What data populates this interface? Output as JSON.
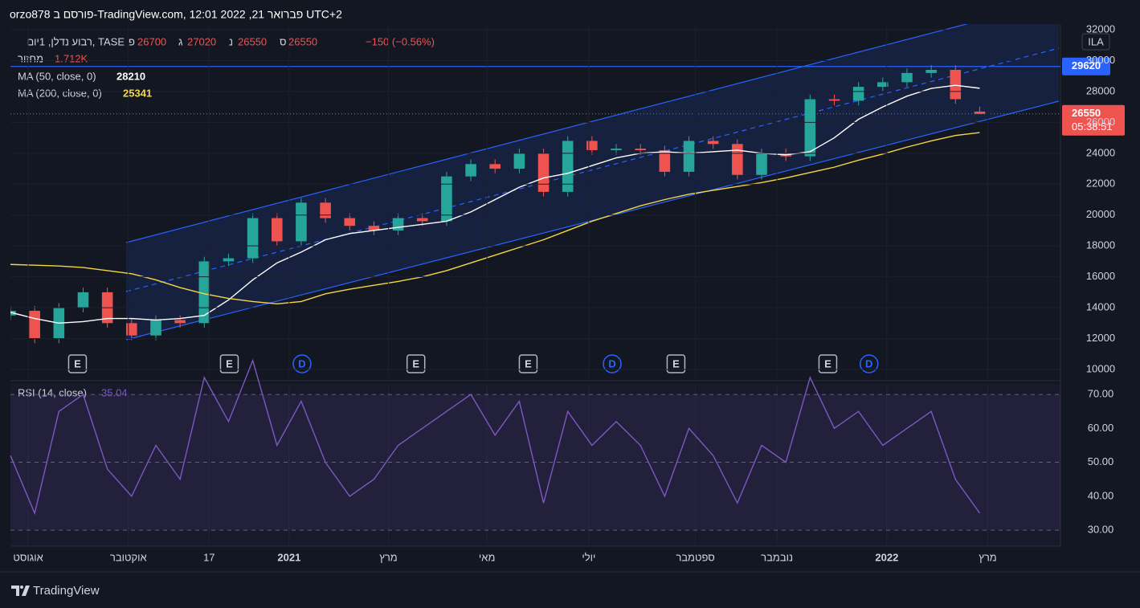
{
  "header": {
    "title": "orzo878 פורסם ב-TradingView.com, פברואר 21, 2022 12:01 UTC+2",
    "symbol": "רבוע נדלן, 1יום, TASE",
    "ohlc_labels": [
      "פ",
      "ג",
      "נ",
      "ס"
    ],
    "change": "−150 (−0.56%)",
    "volume_label": "מחזור",
    "volume": "1.712K",
    "currency": "ILA",
    "countdown": "05:38:51",
    "brand": "TradingView"
  },
  "chart_data": [
    {
      "type": "candlestick",
      "x": [
        0,
        3,
        6,
        9,
        12,
        15,
        18,
        21,
        24,
        27,
        30,
        33,
        36,
        39,
        42,
        45,
        48,
        51,
        54,
        57,
        60,
        63,
        66,
        69,
        72,
        75,
        78,
        81,
        84,
        87,
        90,
        93,
        96,
        99,
        102,
        105,
        108,
        111,
        114,
        117,
        120
      ],
      "open": [
        13500,
        13800,
        12000,
        14000,
        15000,
        13000,
        12200,
        13200,
        13000,
        17000,
        17200,
        19800,
        18300,
        20800,
        19800,
        19300,
        19000,
        19800,
        19600,
        22500,
        23300,
        23000,
        24000,
        21500,
        24800,
        24200,
        24300,
        24200,
        22800,
        24800,
        24600,
        22600,
        24000,
        23800,
        27500,
        27400,
        28300,
        28600,
        29200,
        29400,
        26700
      ],
      "high": [
        14100,
        14100,
        14300,
        15300,
        15300,
        13300,
        13500,
        13500,
        17300,
        17500,
        20100,
        20100,
        21100,
        21100,
        20100,
        19600,
        20100,
        20100,
        22800,
        23600,
        23600,
        24300,
        24300,
        25100,
        25100,
        24600,
        24600,
        24500,
        25100,
        25100,
        24900,
        24300,
        24300,
        27800,
        27800,
        28600,
        28900,
        29500,
        29700,
        29700,
        27020
      ],
      "low": [
        13200,
        11700,
        11700,
        13700,
        12700,
        11900,
        11900,
        12700,
        12700,
        16700,
        16900,
        18000,
        18000,
        19500,
        19000,
        18700,
        18700,
        19300,
        19300,
        22200,
        22700,
        22700,
        21200,
        21200,
        23900,
        23900,
        23900,
        22500,
        22500,
        24300,
        22300,
        22300,
        23500,
        23500,
        27100,
        27100,
        28000,
        28300,
        28900,
        27200,
        26550
      ],
      "close": [
        13800,
        12000,
        14000,
        15000,
        13000,
        12200,
        13200,
        13000,
        17000,
        17200,
        19800,
        18300,
        20800,
        19800,
        19300,
        19000,
        19800,
        19600,
        22500,
        23300,
        23000,
        24000,
        21500,
        24800,
        24200,
        24300,
        24200,
        22800,
        24800,
        24600,
        22600,
        24000,
        23800,
        27500,
        27400,
        28300,
        28600,
        29200,
        29400,
        27500,
        26550
      ],
      "color_up": "#26a69a",
      "color_down": "#ef5350",
      "series": [
        {
          "name": "MA (50, close, 0)",
          "color": "#ffffff",
          "values": [
            13700,
            13300,
            13000,
            13100,
            13300,
            13300,
            13200,
            13300,
            13500,
            14500,
            15800,
            16900,
            17600,
            18400,
            18800,
            19000,
            19200,
            19400,
            19600,
            20200,
            21000,
            21800,
            22400,
            22700,
            23200,
            23700,
            24000,
            24100,
            24000,
            24100,
            24200,
            24000,
            23900,
            24100,
            25000,
            26200,
            27000,
            27700,
            28200,
            28400,
            28210
          ]
        },
        {
          "name": "MA (200, close, 0)",
          "color": "#f5d742",
          "values": [
            16800,
            16750,
            16700,
            16600,
            16400,
            16200,
            15800,
            15300,
            14900,
            14600,
            14400,
            14250,
            14400,
            14900,
            15200,
            15450,
            15700,
            16000,
            16400,
            16900,
            17400,
            17900,
            18400,
            19000,
            19600,
            20100,
            20600,
            21000,
            21350,
            21600,
            21850,
            22100,
            22400,
            22750,
            23100,
            23550,
            23950,
            24400,
            24800,
            25150,
            25341
          ]
        }
      ],
      "level": 29620,
      "events": [
        {
          "x": 8.3,
          "label": "E"
        },
        {
          "x": 27.1,
          "label": "E"
        },
        {
          "x": 36.1,
          "label": "D"
        },
        {
          "x": 50.2,
          "label": "E"
        },
        {
          "x": 64.1,
          "label": "E"
        },
        {
          "x": 74.5,
          "label": "D"
        },
        {
          "x": 82.4,
          "label": "E"
        },
        {
          "x": 101.2,
          "label": "E"
        },
        {
          "x": 106.3,
          "label": "D"
        }
      ],
      "xlim": [
        0,
        130
      ],
      "ylim": [
        9480,
        32364
      ],
      "yticks": [
        10000,
        12000,
        14000,
        16000,
        18000,
        20000,
        22000,
        24000,
        26000,
        28000,
        30000,
        32000
      ],
      "xticks": [
        {
          "value": 2.2,
          "label": "אוגוסט"
        },
        {
          "value": 14.6,
          "label": "אוקטובר"
        },
        {
          "value": 24.6,
          "label": "17"
        },
        {
          "value": 34.5,
          "label": "2021"
        },
        {
          "value": 46.8,
          "label": "מרץ"
        },
        {
          "value": 59.0,
          "label": "מאי"
        },
        {
          "value": 71.6,
          "label": "יולי"
        },
        {
          "value": 84.8,
          "label": "ספטמבר"
        },
        {
          "value": 94.9,
          "label": "נובמבר"
        },
        {
          "value": 108.5,
          "label": "2022"
        },
        {
          "value": 121.0,
          "label": "מרץ"
        }
      ],
      "grid": true
    },
    {
      "type": "line",
      "series": [
        {
          "name": "RSI (14, close)",
          "color": "#7e57c2",
          "values": [
            52,
            35,
            65,
            70,
            48,
            40,
            55,
            45,
            75,
            62,
            80,
            55,
            68,
            50,
            40,
            45,
            55,
            60,
            65,
            70,
            58,
            68,
            38,
            65,
            55,
            62,
            55,
            40,
            60,
            52,
            38,
            55,
            50,
            75,
            60,
            65,
            55,
            60,
            65,
            45,
            35.04
          ]
        }
      ],
      "ylim": [
        25.3,
        73.1
      ],
      "yticks": [
        {
          "value": 30,
          "label": "30.00"
        },
        {
          "value": 40,
          "label": "40.00"
        },
        {
          "value": 50,
          "label": "50.00"
        },
        {
          "value": 60,
          "label": "60.00"
        },
        {
          "value": 70,
          "label": "70.00"
        }
      ],
      "band": [
        30,
        70
      ]
    }
  ]
}
